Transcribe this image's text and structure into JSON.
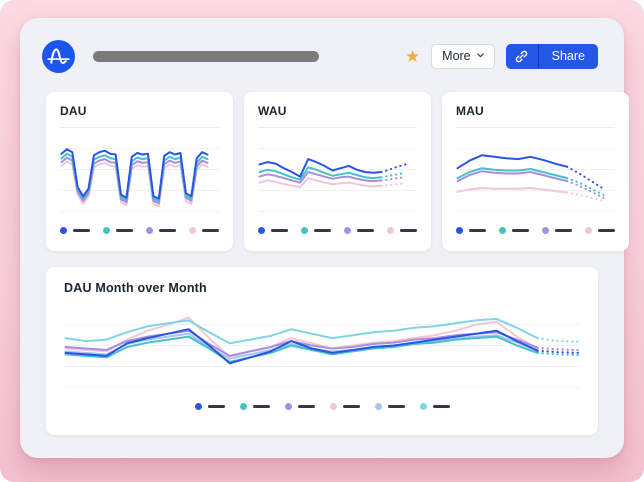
{
  "topbar": {
    "logo_color": "#1b57ef",
    "title_skeleton_color": "#7b7b7b",
    "star_icon": "star-favorite",
    "star_color": "#efae3a",
    "more_label": "More",
    "share_label": "Share",
    "share_color": "#2457e6",
    "link_icon": "link-chain"
  },
  "colors": {
    "page_bg_top": "#fbdae2",
    "page_bg_bottom": "#f3c2cf",
    "panel_bg": "#eff1f6",
    "card_bg": "#ffffff",
    "gridline": "#eef1f6",
    "legend_dash": "#323a49",
    "title_text": "#1c2331"
  },
  "chart_data": [
    {
      "id": "dau",
      "type": "line",
      "title": "DAU",
      "xlabel": "",
      "ylabel": "",
      "grid": true,
      "legend_position": "bottom",
      "dotted_from": null,
      "draw_order": [
        3,
        2,
        1,
        0
      ],
      "series": [
        {
          "name": "blue",
          "color": "#2a54e4",
          "values": [
            74,
            80,
            76,
            30,
            18,
            28,
            72,
            76,
            78,
            74,
            73,
            20,
            16,
            70,
            75,
            73,
            74,
            18,
            15,
            71,
            76,
            73,
            75,
            22,
            18,
            68,
            76,
            73
          ]
        },
        {
          "name": "teal",
          "color": "#45c2c8",
          "values": [
            68,
            74,
            70,
            27,
            15,
            25,
            66,
            70,
            72,
            68,
            67,
            17,
            13,
            64,
            69,
            67,
            68,
            15,
            12,
            65,
            70,
            67,
            69,
            19,
            15,
            62,
            70,
            67
          ]
        },
        {
          "name": "purple",
          "color": "#a58fe0",
          "values": [
            63,
            69,
            65,
            24,
            12,
            22,
            61,
            65,
            67,
            63,
            62,
            14,
            10,
            59,
            64,
            62,
            63,
            12,
            9,
            60,
            65,
            62,
            64,
            16,
            12,
            57,
            65,
            62
          ]
        },
        {
          "name": "pink",
          "color": "#f2c6d6",
          "values": [
            58,
            64,
            60,
            20,
            8,
            18,
            56,
            60,
            62,
            58,
            57,
            10,
            6,
            54,
            59,
            57,
            58,
            8,
            5,
            55,
            60,
            57,
            59,
            12,
            8,
            52,
            60,
            57
          ]
        }
      ]
    },
    {
      "id": "wau",
      "type": "line",
      "title": "WAU",
      "xlabel": "",
      "ylabel": "",
      "grid": true,
      "legend_position": "bottom",
      "dotted_from": 15,
      "draw_order": [
        3,
        2,
        1,
        0
      ],
      "series": [
        {
          "name": "blue",
          "color": "#2a54e4",
          "values": [
            60,
            63,
            61,
            55,
            50,
            44,
            67,
            63,
            58,
            52,
            55,
            58,
            53,
            50,
            49,
            50,
            53,
            57,
            60
          ]
        },
        {
          "name": "teal",
          "color": "#45c2c8",
          "values": [
            50,
            53,
            51,
            47,
            43,
            40,
            56,
            53,
            49,
            45,
            47,
            49,
            46,
            43,
            42,
            43,
            45,
            47,
            49
          ]
        },
        {
          "name": "purple",
          "color": "#a58fe0",
          "values": [
            44,
            47,
            45,
            42,
            39,
            36,
            50,
            47,
            44,
            41,
            43,
            44,
            41,
            39,
            38,
            39,
            40,
            42,
            43
          ]
        },
        {
          "name": "pink",
          "color": "#f2c6d6",
          "values": [
            36,
            39,
            37,
            34,
            32,
            30,
            42,
            39,
            36,
            34,
            35,
            36,
            34,
            32,
            31,
            32,
            33,
            34,
            35
          ]
        }
      ]
    },
    {
      "id": "mau",
      "type": "line",
      "title": "MAU",
      "xlabel": "",
      "ylabel": "",
      "grid": true,
      "legend_position": "bottom",
      "dotted_from": 9,
      "draw_order": [
        3,
        2,
        1,
        0
      ],
      "series": [
        {
          "name": "blue",
          "color": "#2a54e4",
          "values": [
            55,
            65,
            72,
            70,
            68,
            67,
            70,
            66,
            61,
            57,
            48,
            38,
            28
          ]
        },
        {
          "name": "teal",
          "color": "#45c2c8",
          "values": [
            42,
            50,
            55,
            53,
            52,
            52,
            54,
            50,
            46,
            42,
            36,
            28,
            20
          ]
        },
        {
          "name": "purple",
          "color": "#a58fe0",
          "values": [
            38,
            46,
            51,
            49,
            48,
            48,
            50,
            46,
            42,
            38,
            32,
            24,
            16
          ]
        },
        {
          "name": "pink",
          "color": "#f2c6d6",
          "values": [
            24,
            27,
            29,
            28,
            28,
            28,
            29,
            27,
            25,
            23,
            20,
            16,
            12
          ]
        }
      ]
    },
    {
      "id": "dau-mom",
      "type": "line",
      "title": "DAU Month over Month",
      "xlabel": "",
      "ylabel": "",
      "grid": true,
      "legend_position": "bottom",
      "dotted_from": 23,
      "draw_order": [
        4,
        3,
        2,
        1,
        0,
        5
      ],
      "series": [
        {
          "name": "blue",
          "color": "#2a54e4",
          "values": [
            42,
            40,
            38,
            55,
            62,
            68,
            74,
            52,
            28,
            36,
            44,
            58,
            48,
            42,
            46,
            50,
            52,
            56,
            60,
            64,
            68,
            72,
            58,
            45,
            43,
            42
          ]
        },
        {
          "name": "teal",
          "color": "#45c2c8",
          "values": [
            40,
            38,
            36,
            50,
            56,
            60,
            64,
            48,
            30,
            36,
            42,
            52,
            46,
            40,
            44,
            48,
            50,
            54,
            56,
            60,
            62,
            64,
            52,
            42,
            40,
            39
          ]
        },
        {
          "name": "purple",
          "color": "#a58fe0",
          "values": [
            50,
            48,
            46,
            58,
            64,
            68,
            72,
            54,
            38,
            44,
            50,
            58,
            52,
            48,
            50,
            54,
            56,
            60,
            62,
            66,
            68,
            70,
            60,
            49,
            47,
            46
          ]
        },
        {
          "name": "pink",
          "color": "#f2c6d6",
          "values": [
            48,
            46,
            44,
            60,
            72,
            80,
            90,
            62,
            36,
            44,
            50,
            62,
            55,
            48,
            52,
            56,
            58,
            62,
            66,
            72,
            80,
            84,
            64,
            48,
            46,
            45
          ]
        },
        {
          "name": "light-blue",
          "color": "#a9c6f0",
          "values": [
            44,
            42,
            40,
            54,
            60,
            64,
            68,
            50,
            34,
            40,
            46,
            54,
            48,
            44,
            46,
            50,
            52,
            56,
            58,
            62,
            64,
            66,
            56,
            45,
            43,
            42
          ]
        },
        {
          "name": "light-cyan",
          "color": "#7fd6e2",
          "values": [
            62,
            58,
            60,
            70,
            78,
            82,
            86,
            70,
            55,
            60,
            65,
            74,
            68,
            62,
            66,
            70,
            72,
            76,
            78,
            82,
            86,
            88,
            76,
            62,
            58,
            57
          ]
        }
      ]
    }
  ]
}
